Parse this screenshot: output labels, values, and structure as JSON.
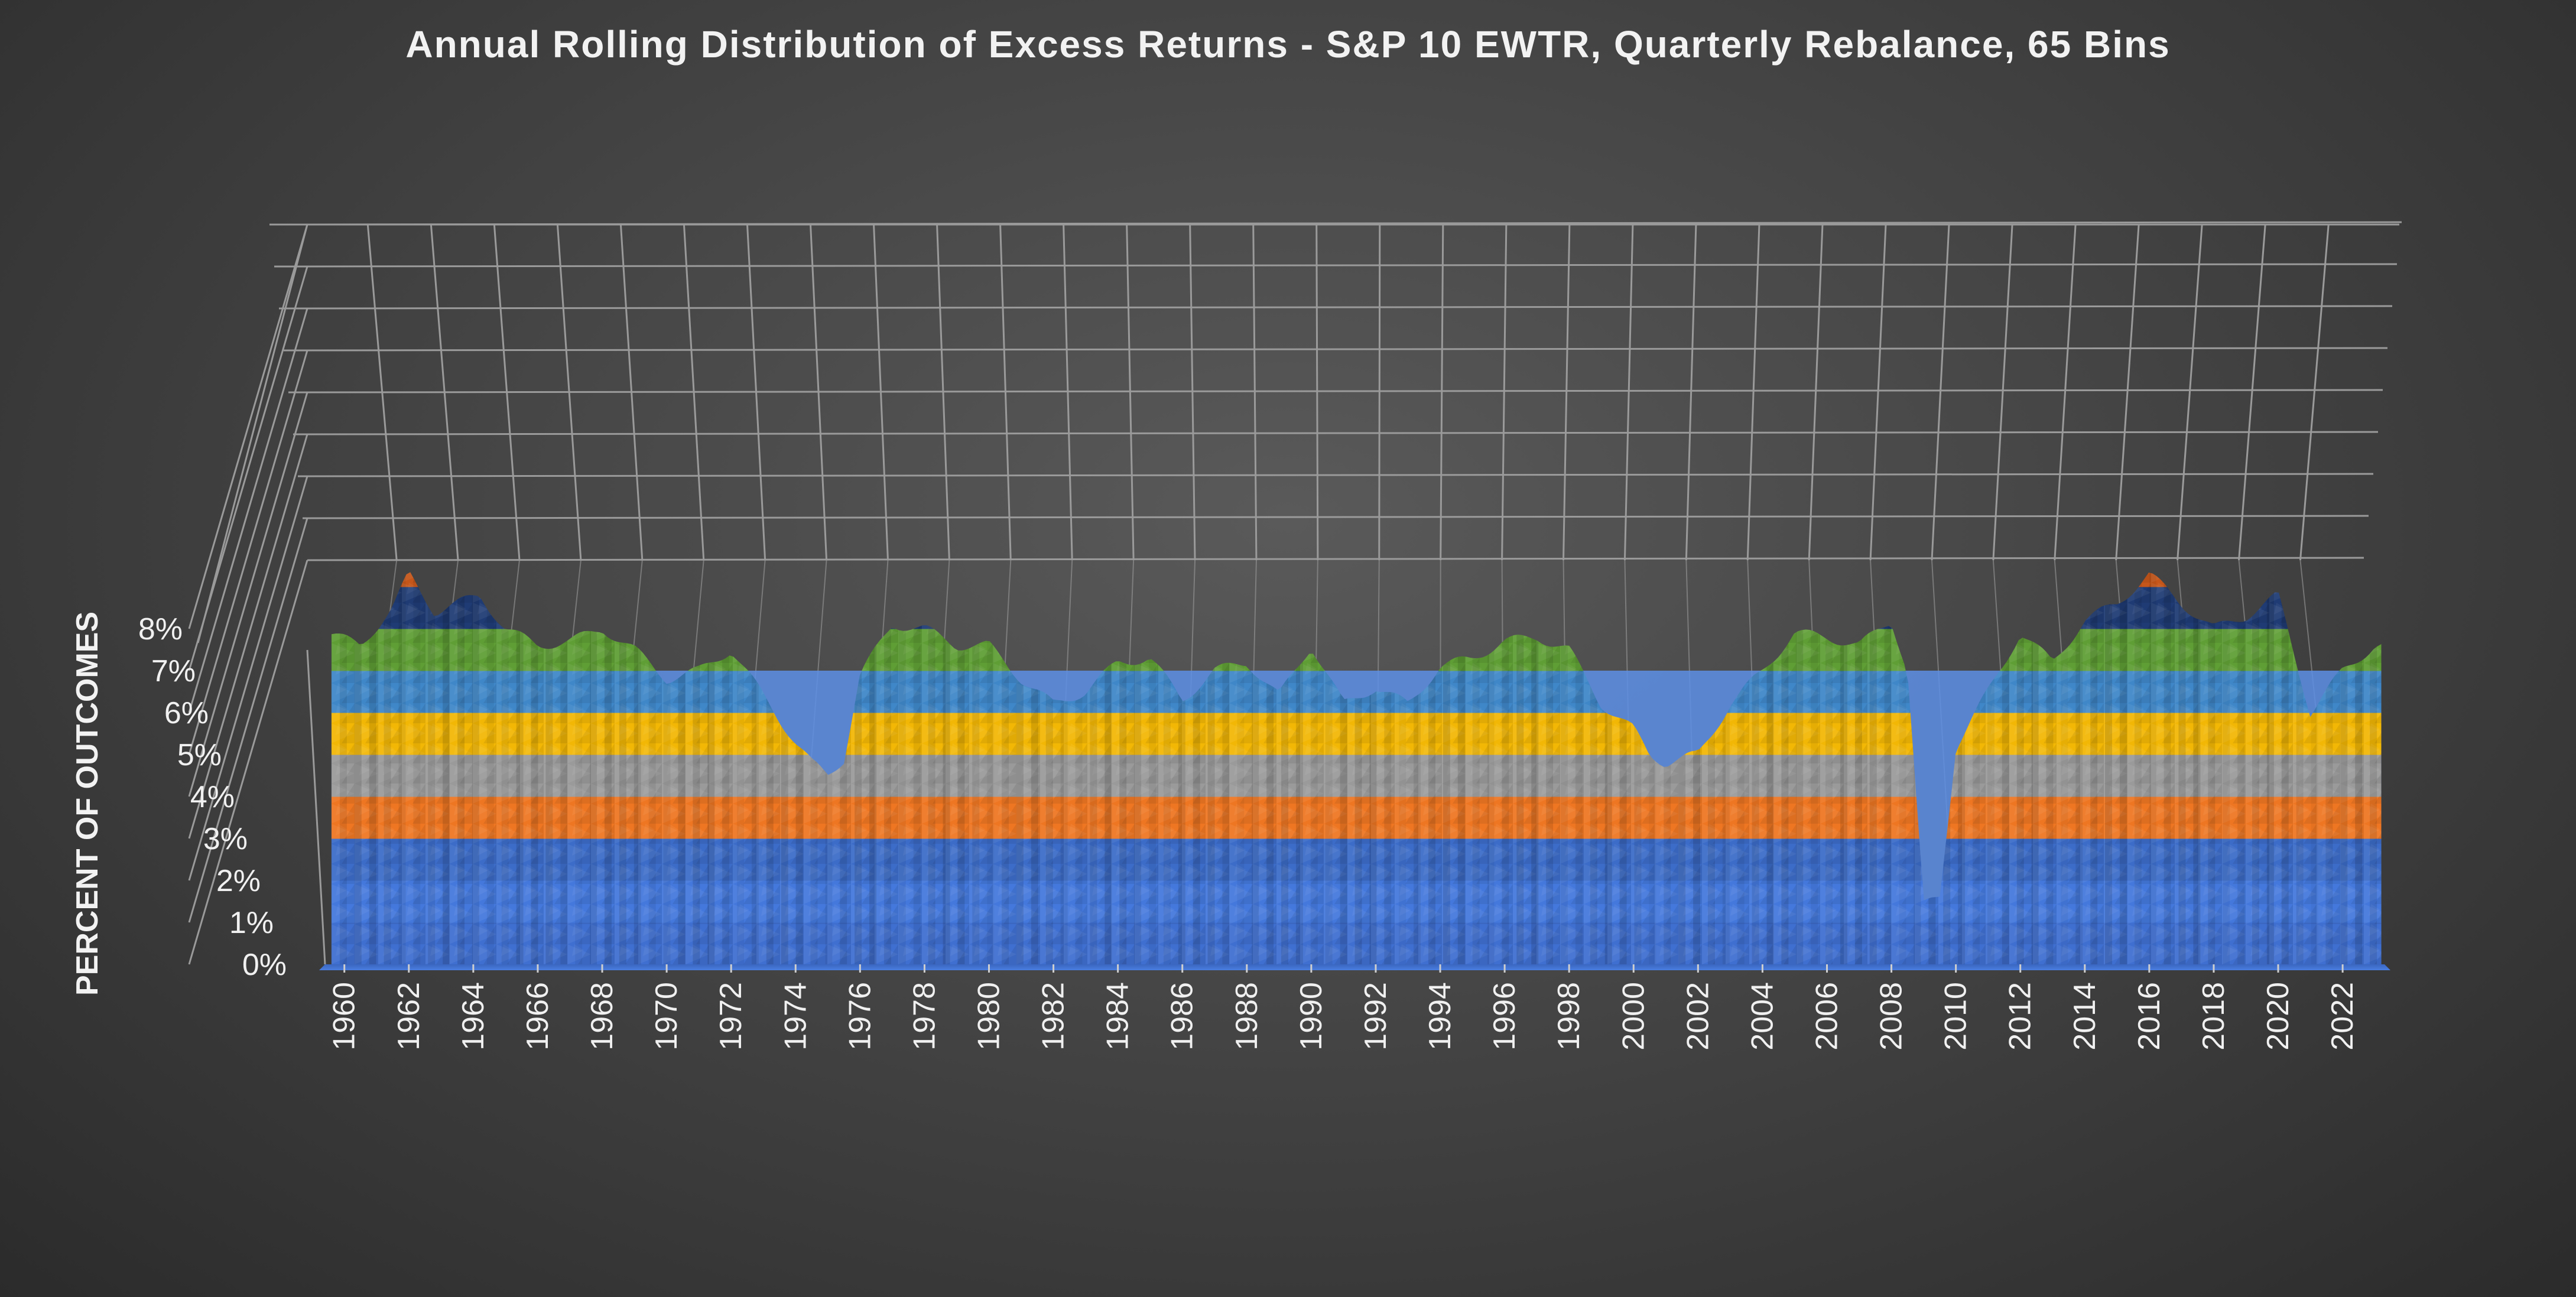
{
  "chart_data": {
    "type": "area",
    "style": "3d-surface",
    "title": "Annual Rolling Distribution of Excess Returns - S&P 10 EWTR, Quarterly Rebalance, 65 Bins",
    "xlabel": "",
    "ylabel": "PERCENT OF OUTCOMES",
    "x_ticks": [
      "1960",
      "1962",
      "1964",
      "1966",
      "1968",
      "1970",
      "1972",
      "1974",
      "1976",
      "1978",
      "1980",
      "1982",
      "1984",
      "1986",
      "1988",
      "1990",
      "1992",
      "1994",
      "1996",
      "1998",
      "2000",
      "2002",
      "2004",
      "2006",
      "2008",
      "2010",
      "2012",
      "2014",
      "2016",
      "2018",
      "2020",
      "2022"
    ],
    "z_ticks": [
      "0%",
      "1%",
      "2%",
      "3%",
      "4%",
      "5%",
      "6%",
      "7%",
      "8%"
    ],
    "zlim": [
      0,
      8
    ],
    "grid": true,
    "legend": "none",
    "color_bands": [
      {
        "range": "0-1%",
        "color": "#3f6fd0"
      },
      {
        "range": "1-2%",
        "color": "#4478dc"
      },
      {
        "range": "2-3%",
        "color": "#3c6cc8"
      },
      {
        "range": "3-4%",
        "color": "#ee7622"
      },
      {
        "range": "4-5%",
        "color": "#9a9a9a"
      },
      {
        "range": "5-6%",
        "color": "#f2b705"
      },
      {
        "range": "6-7%",
        "color": "#3f87c8"
      },
      {
        "range": "7-8%",
        "color": "#5f9e35"
      },
      {
        "range": "8-9%",
        "color": "#1f3b74"
      },
      {
        "range": "9-10%",
        "color": "#c5561a"
      }
    ],
    "peak_profile": {
      "x": [
        1959.5,
        1960.5,
        1961.5,
        1962,
        1962.8,
        1963.5,
        1964.2,
        1965,
        1966,
        1967,
        1968,
        1969,
        1970,
        1971,
        1972,
        1973,
        1974,
        1974.5,
        1975,
        1975.5,
        1976,
        1977,
        1978,
        1979,
        1980,
        1981,
        1982,
        1983,
        1984,
        1985,
        1986,
        1987,
        1988,
        1989,
        1990,
        1991,
        1992,
        1993,
        1994,
        1995,
        1996,
        1997,
        1998,
        1999,
        2000,
        2000.5,
        2001,
        2001.5,
        2002,
        2003,
        2004,
        2005,
        2006,
        2007,
        2008,
        2008.5,
        2009,
        2009.5,
        2010,
        2011,
        2012,
        2013,
        2014,
        2015,
        2016,
        2017,
        2018,
        2019,
        2020,
        2021,
        2022,
        2023
      ],
      "y": [
        7.9,
        7.6,
        8.5,
        9.3,
        8.4,
        8.6,
        8.8,
        8.0,
        7.6,
        7.7,
        8.0,
        7.5,
        6.8,
        7.0,
        7.5,
        6.4,
        5.3,
        4.8,
        4.5,
        4.9,
        6.9,
        8.1,
        8.0,
        7.6,
        7.6,
        6.8,
        6.2,
        6.5,
        7.2,
        7.3,
        6.3,
        7.0,
        7.2,
        6.4,
        7.6,
        6.2,
        6.6,
        6.2,
        7.1,
        7.3,
        7.7,
        7.8,
        7.5,
        6.2,
        5.6,
        5.0,
        4.8,
        4.9,
        5.0,
        6.2,
        7.0,
        7.9,
        7.8,
        7.6,
        8.2,
        7.0,
        1.4,
        1.6,
        5.2,
        6.5,
        7.9,
        7.2,
        8.2,
        8.6,
        9.3,
        8.6,
        8.0,
        8.3,
        8.8,
        6.0,
        7.0,
        7.6
      ]
    }
  }
}
